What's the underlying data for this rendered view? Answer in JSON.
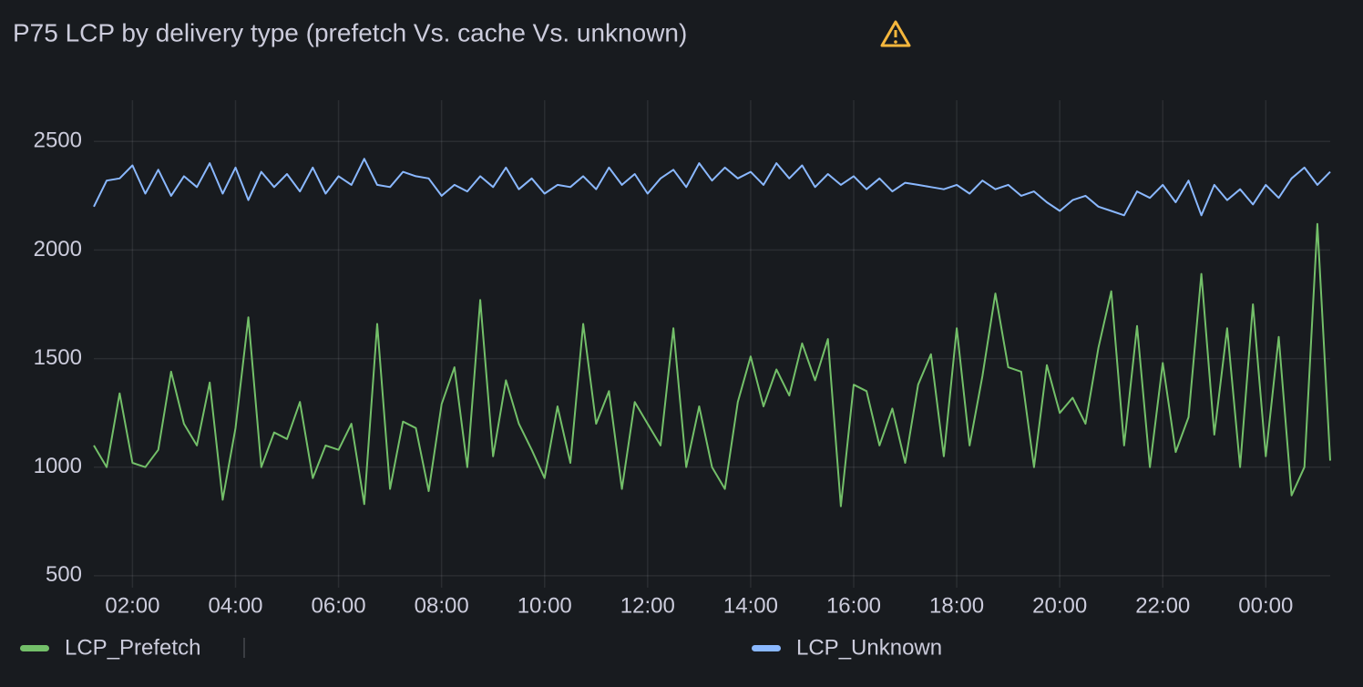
{
  "chart_data": {
    "type": "line",
    "title": "P75 LCP by delivery type (prefetch Vs. cache Vs. unknown)",
    "categories": [
      null,
      null,
      null,
      "02:00",
      null,
      null,
      null,
      null,
      null,
      null,
      null,
      "04:00",
      null,
      null,
      null,
      null,
      null,
      null,
      null,
      "06:00",
      null,
      null,
      null,
      null,
      null,
      null,
      null,
      "08:00",
      null,
      null,
      null,
      null,
      null,
      null,
      null,
      "10:00",
      null,
      null,
      null,
      null,
      null,
      null,
      null,
      "12:00",
      null,
      null,
      null,
      null,
      null,
      null,
      null,
      "14:00",
      null,
      null,
      null,
      null,
      null,
      null,
      null,
      "16:00",
      null,
      null,
      null,
      null,
      null,
      null,
      null,
      "18:00",
      null,
      null,
      null,
      null,
      null,
      null,
      null,
      "20:00",
      null,
      null,
      null,
      null,
      null,
      null,
      null,
      "22:00",
      null,
      null,
      null,
      null,
      null,
      null,
      null,
      "00:00",
      null,
      null,
      null,
      null,
      null
    ],
    "series": [
      {
        "name": "LCP_Prefetch",
        "color": "#73bf69",
        "values": [
          1100,
          1000,
          1340,
          1020,
          1000,
          1080,
          1440,
          1200,
          1100,
          1390,
          850,
          1180,
          1690,
          1000,
          1160,
          1130,
          1300,
          950,
          1100,
          1080,
          1200,
          830,
          1660,
          900,
          1210,
          1180,
          890,
          1290,
          1460,
          1000,
          1770,
          1050,
          1400,
          1200,
          1080,
          950,
          1280,
          1020,
          1660,
          1200,
          1350,
          900,
          1300,
          1200,
          1100,
          1640,
          1000,
          1280,
          1000,
          900,
          1300,
          1510,
          1280,
          1450,
          1330,
          1570,
          1400,
          1590,
          820,
          1380,
          1350,
          1100,
          1270,
          1020,
          1380,
          1520,
          1050,
          1640,
          1100,
          1420,
          1800,
          1460,
          1440,
          1000,
          1470,
          1250,
          1320,
          1200,
          1550,
          1810,
          1100,
          1650,
          1000,
          1480,
          1070,
          1230,
          1890,
          1150,
          1640,
          1000,
          1750,
          1050,
          1600,
          870,
          1000,
          2120,
          1030
        ]
      },
      {
        "name": "LCP_Unknown",
        "color": "#8ab8ff",
        "values": [
          2200,
          2320,
          2330,
          2390,
          2260,
          2370,
          2250,
          2340,
          2290,
          2400,
          2260,
          2380,
          2230,
          2360,
          2290,
          2350,
          2270,
          2380,
          2260,
          2340,
          2300,
          2420,
          2300,
          2290,
          2360,
          2340,
          2330,
          2250,
          2300,
          2270,
          2340,
          2290,
          2380,
          2280,
          2330,
          2260,
          2300,
          2290,
          2340,
          2280,
          2380,
          2300,
          2350,
          2260,
          2330,
          2370,
          2290,
          2400,
          2320,
          2380,
          2330,
          2360,
          2300,
          2400,
          2330,
          2390,
          2290,
          2350,
          2300,
          2340,
          2280,
          2330,
          2270,
          2310,
          2300,
          2290,
          2280,
          2300,
          2260,
          2320,
          2280,
          2300,
          2250,
          2270,
          2220,
          2180,
          2230,
          2250,
          2200,
          2180,
          2160,
          2270,
          2240,
          2300,
          2220,
          2320,
          2160,
          2300,
          2230,
          2280,
          2210,
          2300,
          2240,
          2330,
          2380,
          2300,
          2360
        ]
      }
    ],
    "ylim": [
      445,
      2690
    ],
    "yticks": [
      500,
      1000,
      1500,
      2000,
      2500
    ],
    "grid": true
  }
}
